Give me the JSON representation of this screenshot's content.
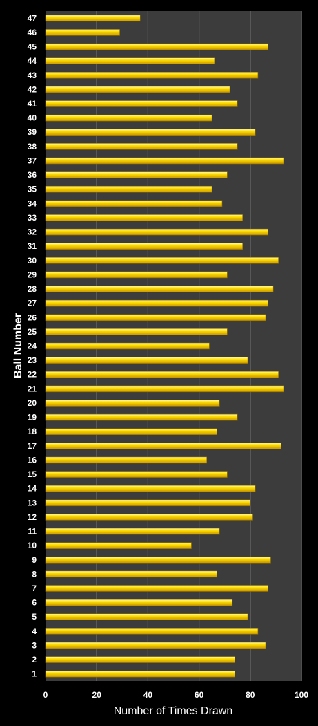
{
  "chart_data": {
    "type": "bar",
    "orientation": "horizontal",
    "title": "",
    "xlabel": "Number of Times Drawn",
    "ylabel": "Ball Number",
    "xlim": [
      0,
      100
    ],
    "x_ticks": [
      0,
      20,
      40,
      60,
      80,
      100
    ],
    "grid": true,
    "legend": "none",
    "categories": [
      "1",
      "2",
      "3",
      "4",
      "5",
      "6",
      "7",
      "8",
      "9",
      "10",
      "11",
      "12",
      "13",
      "14",
      "15",
      "16",
      "17",
      "18",
      "19",
      "20",
      "21",
      "22",
      "23",
      "24",
      "25",
      "26",
      "27",
      "28",
      "29",
      "30",
      "31",
      "32",
      "33",
      "34",
      "35",
      "36",
      "37",
      "38",
      "39",
      "40",
      "41",
      "42",
      "43",
      "44",
      "45",
      "46",
      "47"
    ],
    "values": [
      74,
      74,
      86,
      83,
      79,
      73,
      87,
      67,
      88,
      57,
      68,
      81,
      80,
      82,
      71,
      63,
      92,
      67,
      75,
      68,
      93,
      91,
      79,
      64,
      71,
      86,
      87,
      89,
      71,
      91,
      77,
      87,
      77,
      69,
      65,
      71,
      93,
      75,
      82,
      65,
      75,
      72,
      83,
      66,
      87,
      29,
      37
    ],
    "colors": {
      "background": "#000000",
      "plot_area": "#3c3c3c",
      "gridline": "#9a9a9a",
      "bar_fill": "#ffd400",
      "bar_highlight": "#fff59a",
      "bar_edge": "#8a6a00",
      "text": "#ffffff"
    }
  }
}
